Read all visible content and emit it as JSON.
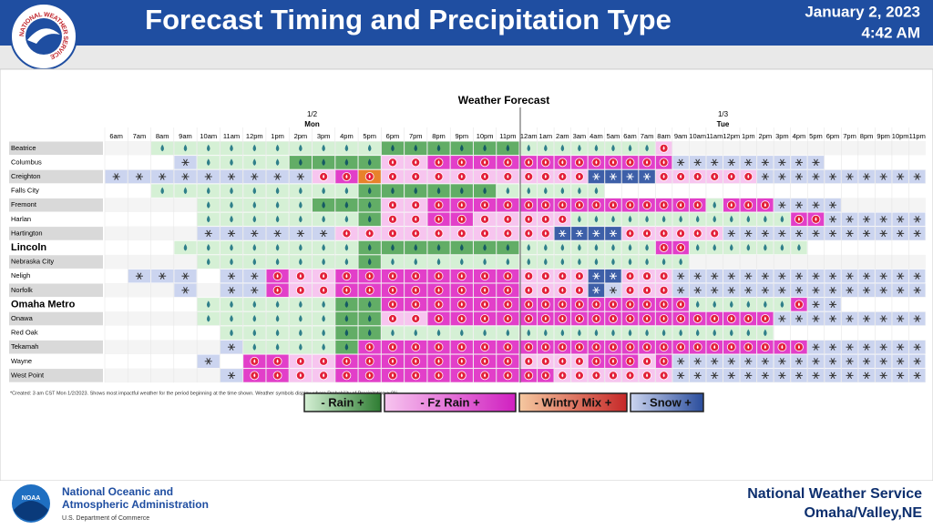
{
  "header": {
    "title": "Forecast Timing and Precipitation Type",
    "date": "January 2, 2023",
    "time": "4:42 AM",
    "logo_text": "NATIONAL WEATHER SERVICE"
  },
  "table": {
    "title": "Weather Forecast",
    "days": [
      {
        "date": "1/2",
        "name": "Mon"
      },
      {
        "date": "1/3",
        "name": "Tue"
      }
    ],
    "hours": [
      "6am",
      "7am",
      "8am",
      "9am",
      "10am",
      "11am",
      "12pm",
      "1pm",
      "2pm",
      "3pm",
      "4pm",
      "5pm",
      "6pm",
      "7pm",
      "8pm",
      "9pm",
      "10pm",
      "11pm",
      "12am",
      "1am",
      "2am",
      "3am",
      "4am",
      "5am",
      "6am",
      "7am",
      "8am",
      "9am",
      "10am",
      "11am",
      "12pm",
      "1pm",
      "2pm",
      "3pm",
      "4pm",
      "5pm",
      "6pm",
      "7pm",
      "8pm",
      "9pm",
      "10pm",
      "11pm"
    ],
    "day_columns": [
      18,
      24
    ],
    "rows": [
      {
        "name": "Beatrice",
        "cells": "..rrrrrrrrrrRRRRRRrrrrrrrrz..............."
      },
      {
        "name": "Columbus",
        "cells": "...srrrrRRRRzzZZZZZZZZZZZZZsssssssss......"
      },
      {
        "name": "Creighton",
        "cells": "ssssssssszZMzzzzzzzzzzSSSSzzzzzzssssssssss"
      },
      {
        "name": "Falls City",
        "cells": "..rrrrrrrrrRRRRRRrrrrrr..................."
      },
      {
        "name": "Fremont",
        "cells": "....rrrrrRRRzzZZZZZZZZZZZZZZZrZZZssss....."
      },
      {
        "name": "Harlan",
        "cells": "....rrrrrrrRzzZZzzzzzrrrrrrrrrrrrrZZssssss"
      },
      {
        "name": "Hartington",
        "cells": "....sssssszzzzzzzzzzSSSSzzzzzzssssssssssss"
      },
      {
        "name": "Lincoln",
        "cells": "...rrrrrrrrRRRRRRRrrrrrrrrZZrrrrrrr.......",
        "large": true
      },
      {
        "name": "Nebraska City",
        "cells": "....rrrrrrrRrrrrrrrrrrrrrrrr.............."
      },
      {
        "name": "Neligh",
        "cells": ".sss.ssZzzZZZZZZZZzzzzSSzzzsssssssssssssss"
      },
      {
        "name": "Norfolk",
        "cells": "...s.ssZzzZZZZZZZZzzzzSszzzsssssssssssssss"
      },
      {
        "name": "Omaha Metro",
        "cells": "....rrrrrrRRZZZZZZZZZZZZZZZZrrrrrrZss.....",
        "large": true
      },
      {
        "name": "Onawa",
        "cells": "....rrrrrrRRzzZZZZZZZZZZZZZZZZZZZsssssssss"
      },
      {
        "name": "Red Oak",
        "cells": ".....rrrrrRRrrrrrrrrrrrrrrrrrrrrr........."
      },
      {
        "name": "Tekamah",
        "cells": ".....srrrrRZZZZZZZZZZZZZZZZZZZZZZZZsssssss"
      },
      {
        "name": "Wayne",
        "cells": "....s.ZZzzZZZZZZZZzzzzZZZzZsssssssssssssss"
      },
      {
        "name": "West Point",
        "cells": ".....sZZzzZZZZZZZZZZzzzzzzzsssssssssssssss"
      }
    ],
    "note": "*Created: 3 am CST Mon 1/2/2023. Shows most impactful weather for the period beginning at the time shown. Weather symbols display where Probability of Precipitation ≥ 0%.",
    "cell_styles": {
      "r": {
        "fill": "#d5f0d5",
        "icon": "drop"
      },
      "R": {
        "fill": "#62ad66",
        "icon": "drop"
      },
      "z": {
        "fill": "#f7c5ef",
        "icon": "fz"
      },
      "Z": {
        "fill": "#e23fc9",
        "icon": "fz"
      },
      "m": {
        "fill": "#f5c8a0",
        "icon": "fz"
      },
      "M": {
        "fill": "#e8822b",
        "icon": "fz"
      },
      "s": {
        "fill": "#cbd4ef",
        "icon": "snow"
      },
      "S": {
        "fill": "#3d5fa8",
        "icon": "snow"
      }
    }
  },
  "legend": [
    {
      "label": "- Rain +",
      "from": "#d5f0d5",
      "to": "#2e7d32"
    },
    {
      "label": "- Fz Rain +",
      "from": "#f7c5ef",
      "to": "#d020c0"
    },
    {
      "label": "- Wintry Mix +",
      "from": "#f5c8a0",
      "to": "#c62828"
    },
    {
      "label": "- Snow +",
      "from": "#cbd4ef",
      "to": "#2a4d9c"
    }
  ],
  "footer": {
    "org_line1": "National Oceanic and",
    "org_line2": "Atmospheric Administration",
    "dept": "U.S. Department of Commerce",
    "logo_text": "NOAA",
    "office": "National Weather Service",
    "location": "Omaha/Valley,NE"
  }
}
